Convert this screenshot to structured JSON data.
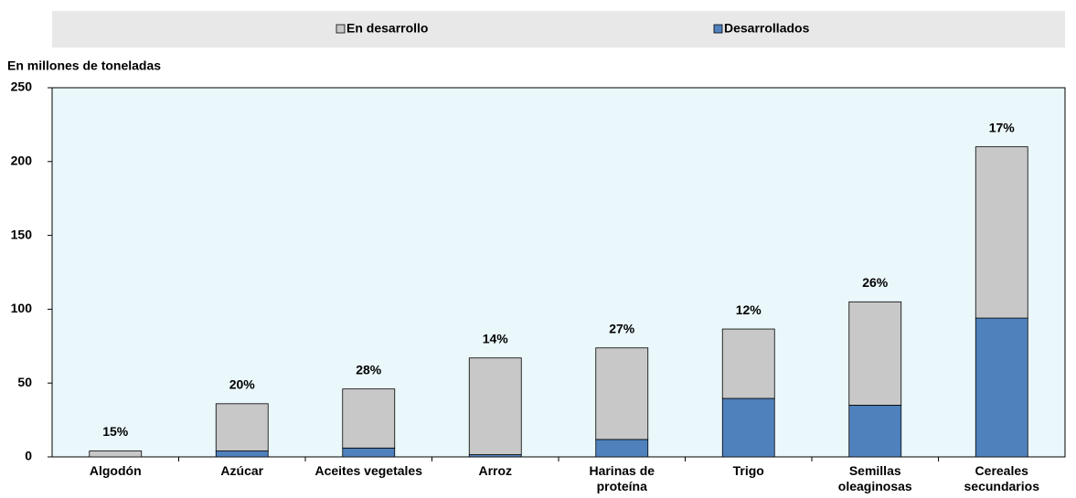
{
  "chart_data": {
    "type": "bar",
    "stacked": true,
    "y_label": "En millones de toneladas",
    "categories": [
      "Algodón",
      "Azúcar",
      "Aceites vegetales",
      "Arroz",
      "Harinas de proteína",
      "Trigo",
      "Semillas oleaginosas",
      "Cereales secundarios"
    ],
    "series": [
      {
        "name": "En desarrollo",
        "color": "#c8c8c8",
        "values": [
          4,
          32,
          40,
          65.5,
          62,
          47,
          70,
          116
        ]
      },
      {
        "name": "Desarrollados",
        "color": "#4f81bd",
        "values": [
          0,
          4,
          6,
          1.5,
          11.8,
          39.6,
          35,
          94
        ]
      }
    ],
    "annotations": [
      "15%",
      "20%",
      "28%",
      "14%",
      "27%",
      "12%",
      "26%",
      "17%"
    ],
    "ylim": [
      0,
      250
    ],
    "yticks": [
      0,
      50,
      100,
      150,
      200,
      250
    ],
    "grid": false
  }
}
